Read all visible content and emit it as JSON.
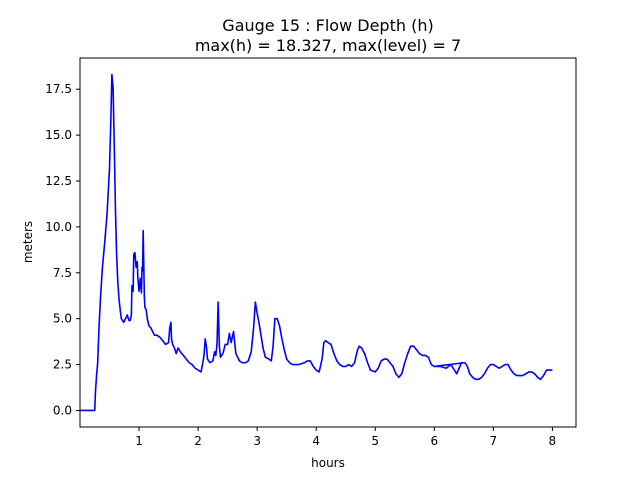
{
  "chart_data": {
    "type": "line",
    "title_line1": "Gauge 15 : Flow Depth (h)",
    "title_line2": "max(h) =  18.327,    max(level) = 7",
    "xlabel": "hours",
    "ylabel": "meters",
    "xlim": [
      0.0,
      8.4
    ],
    "ylim": [
      -0.9,
      19.2
    ],
    "xticks": [
      1,
      2,
      3,
      4,
      5,
      6,
      7,
      8
    ],
    "xtick_labels": [
      "1",
      "2",
      "3",
      "4",
      "5",
      "6",
      "7",
      "8"
    ],
    "yticks": [
      0.0,
      2.5,
      5.0,
      7.5,
      10.0,
      12.5,
      15.0,
      17.5
    ],
    "ytick_labels": [
      "0.0",
      "2.5",
      "5.0",
      "7.5",
      "10.0",
      "12.5",
      "15.0",
      "17.5"
    ],
    "grid": false,
    "legend": false,
    "series": [
      {
        "color": "#0000ff",
        "points": [
          [
            0.0,
            0.0
          ],
          [
            0.25,
            0.0
          ],
          [
            0.26,
            0.9
          ],
          [
            0.28,
            1.9
          ],
          [
            0.3,
            2.6
          ],
          [
            0.32,
            4.4
          ],
          [
            0.35,
            6.3
          ],
          [
            0.38,
            7.8
          ],
          [
            0.42,
            9.2
          ],
          [
            0.46,
            10.8
          ],
          [
            0.5,
            13.2
          ],
          [
            0.52,
            15.5
          ],
          [
            0.54,
            18.3
          ],
          [
            0.56,
            17.6
          ],
          [
            0.58,
            14.5
          ],
          [
            0.6,
            11.0
          ],
          [
            0.62,
            8.5
          ],
          [
            0.64,
            7.0
          ],
          [
            0.66,
            6.1
          ],
          [
            0.68,
            5.5
          ],
          [
            0.7,
            5.0
          ],
          [
            0.72,
            4.9
          ],
          [
            0.74,
            4.8
          ],
          [
            0.77,
            5.0
          ],
          [
            0.8,
            5.2
          ],
          [
            0.83,
            4.9
          ],
          [
            0.85,
            4.9
          ],
          [
            0.87,
            5.2
          ],
          [
            0.88,
            6.8
          ],
          [
            0.9,
            6.5
          ],
          [
            0.91,
            8.5
          ],
          [
            0.93,
            8.6
          ],
          [
            0.95,
            7.8
          ],
          [
            0.97,
            8.1
          ],
          [
            0.98,
            7.2
          ],
          [
            1.0,
            6.5
          ],
          [
            1.02,
            7.2
          ],
          [
            1.04,
            6.4
          ],
          [
            1.05,
            7.8
          ],
          [
            1.06,
            7.6
          ],
          [
            1.07,
            9.8
          ],
          [
            1.08,
            7.9
          ],
          [
            1.09,
            6.2
          ],
          [
            1.1,
            5.6
          ],
          [
            1.12,
            5.5
          ],
          [
            1.14,
            5.0
          ],
          [
            1.17,
            4.6
          ],
          [
            1.2,
            4.5
          ],
          [
            1.23,
            4.3
          ],
          [
            1.26,
            4.1
          ],
          [
            1.3,
            4.1
          ],
          [
            1.35,
            4.0
          ],
          [
            1.4,
            3.8
          ],
          [
            1.45,
            3.6
          ],
          [
            1.5,
            3.7
          ],
          [
            1.52,
            4.5
          ],
          [
            1.54,
            4.8
          ],
          [
            1.55,
            3.9
          ],
          [
            1.57,
            3.6
          ],
          [
            1.6,
            3.4
          ],
          [
            1.63,
            3.1
          ],
          [
            1.66,
            3.4
          ],
          [
            1.7,
            3.2
          ],
          [
            1.75,
            3.0
          ],
          [
            1.8,
            2.8
          ],
          [
            1.85,
            2.6
          ],
          [
            1.9,
            2.5
          ],
          [
            1.95,
            2.3
          ],
          [
            2.0,
            2.2
          ],
          [
            2.05,
            2.1
          ],
          [
            2.08,
            2.6
          ],
          [
            2.1,
            3.0
          ],
          [
            2.12,
            3.9
          ],
          [
            2.14,
            3.5
          ],
          [
            2.16,
            2.8
          ],
          [
            2.2,
            2.6
          ],
          [
            2.25,
            2.7
          ],
          [
            2.28,
            3.2
          ],
          [
            2.3,
            3.0
          ],
          [
            2.32,
            3.6
          ],
          [
            2.34,
            5.9
          ],
          [
            2.36,
            3.5
          ],
          [
            2.38,
            2.9
          ],
          [
            2.42,
            3.1
          ],
          [
            2.46,
            3.6
          ],
          [
            2.5,
            3.6
          ],
          [
            2.53,
            4.2
          ],
          [
            2.56,
            3.7
          ],
          [
            2.6,
            4.3
          ],
          [
            2.64,
            3.1
          ],
          [
            2.7,
            2.7
          ],
          [
            2.75,
            2.6
          ],
          [
            2.8,
            2.6
          ],
          [
            2.85,
            2.7
          ],
          [
            2.9,
            3.2
          ],
          [
            2.94,
            4.5
          ],
          [
            2.97,
            5.9
          ],
          [
            3.0,
            5.3
          ],
          [
            3.03,
            4.8
          ],
          [
            3.06,
            4.2
          ],
          [
            3.1,
            3.4
          ],
          [
            3.14,
            2.9
          ],
          [
            3.2,
            2.8
          ],
          [
            3.24,
            2.7
          ],
          [
            3.27,
            3.5
          ],
          [
            3.3,
            5.0
          ],
          [
            3.34,
            5.0
          ],
          [
            3.38,
            4.6
          ],
          [
            3.42,
            3.9
          ],
          [
            3.46,
            3.3
          ],
          [
            3.5,
            2.8
          ],
          [
            3.55,
            2.6
          ],
          [
            3.6,
            2.5
          ],
          [
            3.7,
            2.5
          ],
          [
            3.8,
            2.6
          ],
          [
            3.85,
            2.7
          ],
          [
            3.9,
            2.7
          ],
          [
            3.95,
            2.4
          ],
          [
            4.0,
            2.2
          ],
          [
            4.05,
            2.1
          ],
          [
            4.1,
            2.8
          ],
          [
            4.13,
            3.7
          ],
          [
            4.16,
            3.8
          ],
          [
            4.2,
            3.7
          ],
          [
            4.25,
            3.6
          ],
          [
            4.3,
            3.1
          ],
          [
            4.35,
            2.7
          ],
          [
            4.4,
            2.5
          ],
          [
            4.45,
            2.4
          ],
          [
            4.5,
            2.4
          ],
          [
            4.55,
            2.5
          ],
          [
            4.6,
            2.4
          ],
          [
            4.65,
            2.6
          ],
          [
            4.7,
            3.3
          ],
          [
            4.73,
            3.5
          ],
          [
            4.77,
            3.4
          ],
          [
            4.82,
            3.1
          ],
          [
            4.87,
            2.6
          ],
          [
            4.92,
            2.2
          ],
          [
            5.0,
            2.1
          ],
          [
            5.05,
            2.3
          ],
          [
            5.1,
            2.7
          ],
          [
            5.15,
            2.8
          ],
          [
            5.2,
            2.8
          ],
          [
            5.25,
            2.6
          ],
          [
            5.3,
            2.4
          ],
          [
            5.35,
            2.0
          ],
          [
            5.4,
            1.8
          ],
          [
            5.45,
            2.0
          ],
          [
            5.5,
            2.6
          ],
          [
            5.55,
            3.1
          ],
          [
            5.6,
            3.5
          ],
          [
            5.65,
            3.5
          ],
          [
            5.7,
            3.3
          ],
          [
            5.75,
            3.1
          ],
          [
            5.8,
            3.0
          ],
          [
            5.85,
            3.0
          ],
          [
            5.9,
            2.9
          ],
          [
            5.95,
            2.5
          ],
          [
            6.0,
            2.4
          ],
          [
            6.1,
            2.4
          ],
          [
            6.2,
            2.3
          ],
          [
            6.28,
            2.5
          ],
          [
            6.34,
            2.2
          ],
          [
            6.38,
            2.0
          ],
          [
            6.42,
            2.3
          ],
          [
            6.46,
            2.6
          ],
          [
            6.52,
            2.6
          ],
          [
            6.56,
            2.4
          ],
          [
            6.6,
            2.0
          ],
          [
            6.65,
            1.8
          ],
          [
            6.7,
            1.7
          ],
          [
            6.75,
            1.7
          ],
          [
            6.8,
            1.8
          ],
          [
            6.85,
            2.0
          ],
          [
            6.9,
            2.3
          ],
          [
            6.95,
            2.5
          ],
          [
            7.0,
            2.5
          ],
          [
            7.05,
            2.4
          ],
          [
            7.1,
            2.3
          ],
          [
            7.15,
            2.4
          ],
          [
            7.2,
            2.5
          ],
          [
            7.25,
            2.5
          ],
          [
            7.3,
            2.2
          ],
          [
            7.35,
            2.0
          ],
          [
            7.4,
            1.9
          ],
          [
            7.5,
            1.9
          ],
          [
            7.6,
            2.1
          ],
          [
            7.65,
            2.1
          ],
          [
            7.7,
            2.0
          ],
          [
            7.75,
            1.8
          ],
          [
            7.8,
            1.7
          ],
          [
            7.85,
            1.9
          ],
          [
            7.9,
            2.2
          ],
          [
            7.95,
            2.2
          ],
          [
            8.0,
            2.2
          ]
        ]
      },
      {
        "color": "#0000ff",
        "points": [
          [
            6.0,
            2.4
          ],
          [
            6.5,
            2.6
          ]
        ]
      }
    ]
  }
}
